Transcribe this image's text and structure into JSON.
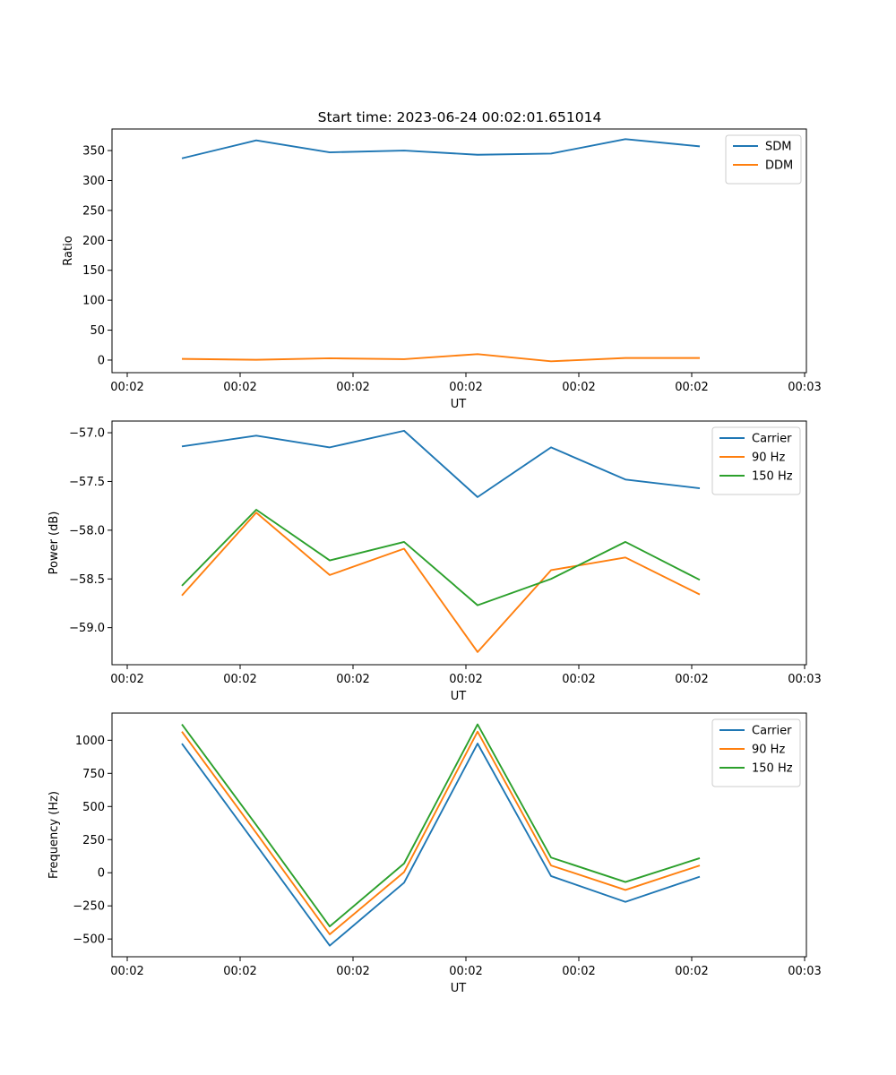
{
  "figure": {
    "title": "Start time: 2023-06-24 00:02:01.651014"
  },
  "chart_data": [
    {
      "type": "line",
      "title": "Start time: 2023-06-24 00:02:01.651014",
      "xlabel": "UT",
      "ylabel": "Ratio",
      "x_tick_labels": [
        "00:02",
        "00:02",
        "00:02",
        "00:02",
        "00:02",
        "00:02",
        "00:02",
        "00:03"
      ],
      "y_ticks": [
        0,
        50,
        100,
        150,
        200,
        250,
        300,
        350
      ],
      "ylim": [
        -21,
        386
      ],
      "legend_position": "top-right",
      "grid": false,
      "series": [
        {
          "name": "SDM",
          "color": "#1f77b4",
          "values": [
            337,
            367,
            347,
            350,
            343,
            345,
            369,
            357
          ]
        },
        {
          "name": "DDM",
          "color": "#ff7f0e",
          "values": [
            2,
            0.5,
            3,
            1.5,
            10,
            -2,
            3.5,
            3.5
          ]
        }
      ]
    },
    {
      "type": "line",
      "title": "",
      "xlabel": "UT",
      "ylabel": "Power (dB)",
      "x_tick_labels": [
        "00:02",
        "00:02",
        "00:02",
        "00:02",
        "00:02",
        "00:02",
        "00:02",
        "00:03"
      ],
      "y_ticks": [
        -57.0,
        -57.5,
        -58.0,
        -58.5,
        -59.0
      ],
      "y_tick_labels": [
        "−57.0",
        "−57.5",
        "−58.0",
        "−58.5",
        "−59.0"
      ],
      "ylim": [
        -59.38,
        -56.88
      ],
      "legend_position": "top-right",
      "grid": false,
      "series": [
        {
          "name": "Carrier",
          "color": "#1f77b4",
          "values": [
            -57.14,
            -57.03,
            -57.15,
            -56.98,
            -57.66,
            -57.15,
            -57.48,
            -57.57
          ]
        },
        {
          "name": "90 Hz",
          "color": "#ff7f0e",
          "values": [
            -58.67,
            -57.82,
            -58.46,
            -58.19,
            -59.25,
            -58.41,
            -58.28,
            -58.66
          ]
        },
        {
          "name": "150 Hz",
          "color": "#2ca02c",
          "values": [
            -58.57,
            -57.79,
            -58.31,
            -58.12,
            -58.77,
            -58.5,
            -58.12,
            -58.51
          ]
        }
      ]
    },
    {
      "type": "line",
      "title": "",
      "xlabel": "UT",
      "ylabel": "Frequency (Hz)",
      "x_tick_labels": [
        "00:02",
        "00:02",
        "00:02",
        "00:02",
        "00:02",
        "00:02",
        "00:02",
        "00:03"
      ],
      "y_ticks": [
        1000,
        750,
        500,
        250,
        0,
        -250,
        -500
      ],
      "y_tick_labels": [
        "1000",
        "750",
        "500",
        "250",
        "0",
        "−250",
        "−500"
      ],
      "ylim": [
        -634,
        1205
      ],
      "legend_position": "top-right",
      "grid": false,
      "series": [
        {
          "name": "Carrier",
          "color": "#1f77b4",
          "values": [
            975,
            210,
            -550,
            -75,
            975,
            -25,
            -220,
            -30
          ]
        },
        {
          "name": "90 Hz",
          "color": "#ff7f0e",
          "values": [
            1065,
            300,
            -465,
            5,
            1065,
            55,
            -130,
            55
          ]
        },
        {
          "name": "150 Hz",
          "color": "#2ca02c",
          "values": [
            1120,
            360,
            -405,
            70,
            1120,
            115,
            -70,
            110
          ]
        }
      ]
    }
  ]
}
